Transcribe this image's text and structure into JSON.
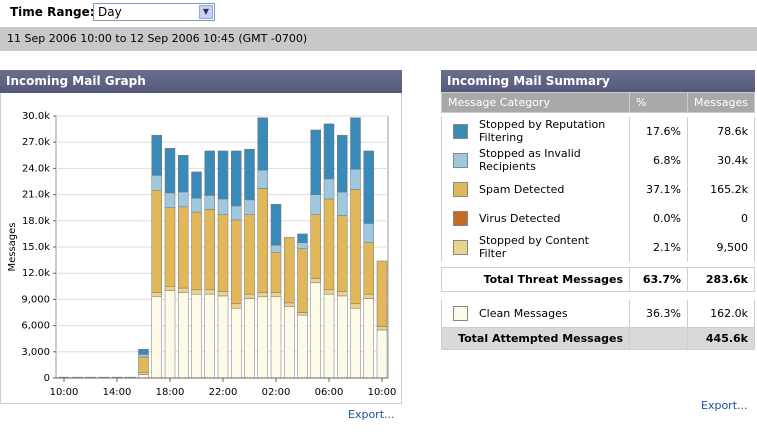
{
  "header": {
    "time_range_label": "Time Range:",
    "time_range_value": "Day",
    "date_range": "11 Sep 2006 10:00 to 12 Sep 2006 10:45 (GMT -0700)"
  },
  "graph_panel": {
    "title": "Incoming Mail Graph",
    "export": "Export..."
  },
  "chart_data": {
    "type": "stacked_bar",
    "y_label": "Messages",
    "categories": [
      "10:00",
      null,
      null,
      null,
      "14:00",
      null,
      null,
      null,
      "18:00",
      null,
      null,
      null,
      "22:00",
      null,
      null,
      null,
      "02:00",
      null,
      null,
      null,
      "06:00",
      null,
      null,
      null,
      "10:00"
    ],
    "series": [
      {
        "name": "Stopped by Reputation Filtering",
        "color": "#3a8ab9",
        "values": [
          0,
          0,
          0,
          0,
          0,
          0,
          600,
          4600,
          5100,
          4200,
          3000,
          5100,
          5500,
          6300,
          5800,
          6000,
          4700,
          0,
          1000,
          7400,
          6300,
          6500,
          5900,
          8300,
          0
        ]
      },
      {
        "name": "Stopped as Invalid Recipients",
        "color": "#9fc8de",
        "values": [
          0,
          0,
          0,
          0,
          0,
          0,
          300,
          1700,
          1700,
          1700,
          1600,
          1600,
          1800,
          1600,
          1700,
          2100,
          800,
          0,
          700,
          2300,
          2300,
          2700,
          2300,
          2200,
          0
        ]
      },
      {
        "name": "Spam Detected",
        "color": "#e0b85a",
        "values": [
          0,
          0,
          0,
          0,
          0,
          0,
          1800,
          11700,
          9000,
          9300,
          8900,
          9200,
          8800,
          9600,
          9100,
          11900,
          4600,
          7500,
          7300,
          7300,
          10400,
          8700,
          13100,
          5900,
          7500
        ]
      },
      {
        "name": "Virus Detected",
        "color": "#c66b23",
        "values": [
          0,
          0,
          0,
          0,
          0,
          0,
          0,
          0,
          0,
          0,
          0,
          0,
          0,
          0,
          0,
          0,
          0,
          0,
          0,
          0,
          0,
          0,
          0,
          0,
          0
        ]
      },
      {
        "name": "Stopped by Content Filter",
        "color": "#ead28f",
        "values": [
          0,
          0,
          0,
          0,
          0,
          0,
          200,
          500,
          500,
          500,
          500,
          500,
          500,
          500,
          500,
          500,
          500,
          400,
          300,
          500,
          500,
          500,
          500,
          500,
          400
        ]
      },
      {
        "name": "Clean Messages",
        "color": "#fdfbe8",
        "values": [
          100,
          100,
          100,
          100,
          100,
          100,
          400,
          9300,
          10000,
          9800,
          9600,
          9600,
          9400,
          8000,
          9100,
          9300,
          9300,
          8200,
          7200,
          10900,
          9600,
          9400,
          8000,
          9100,
          5500
        ]
      }
    ],
    "ylim": [
      0,
      30000
    ],
    "yticks": [
      0,
      {
        "value": 3000,
        "label": "3,000"
      },
      {
        "value": 6000,
        "label": "6,000"
      },
      {
        "value": 9000,
        "label": "9,000"
      },
      {
        "value": 12000,
        "label": "12.0k"
      },
      {
        "value": 15000,
        "label": "15.0k"
      },
      {
        "value": 18000,
        "label": "18.0k"
      },
      {
        "value": 21000,
        "label": "21.0k"
      },
      {
        "value": 24000,
        "label": "24.0k"
      },
      {
        "value": 27000,
        "label": "27.0k"
      },
      {
        "value": 30000,
        "label": "30.0k"
      }
    ],
    "grid": true
  },
  "summary": {
    "title": "Incoming Mail Summary",
    "headers": [
      "Message Category",
      "%",
      "Messages"
    ],
    "rows": [
      {
        "pct": "17.6%",
        "messages": "78.6k"
      },
      {
        "pct": "6.8%",
        "messages": "30.4k"
      },
      {
        "pct": "37.1%",
        "messages": "165.2k"
      },
      {
        "pct": "0.0%",
        "messages": "0"
      },
      {
        "pct": "2.1%",
        "messages": "9,500"
      },
      {
        "pct": "36.3%",
        "messages": "162.0k"
      }
    ],
    "total_threat": {
      "label": "Total Threat Messages",
      "pct": "63.7%",
      "messages": "283.6k"
    },
    "total_attempted": {
      "label": "Total Attempted Messages",
      "messages": "445.6k"
    },
    "export": "Export..."
  }
}
